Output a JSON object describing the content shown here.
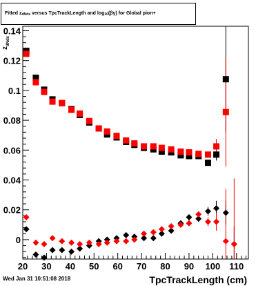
{
  "title": {
    "part1": "Fitted  z",
    "sub1": "dNdx",
    "part2": " versus TpcTrackLength and log",
    "sub2": "10",
    "part3": "(βγ) for Global pion+"
  },
  "timestamp": "Wed Jan 31 10:51:08 2018",
  "chart_data": {
    "type": "scatter",
    "xlabel": "TpcTrackLength (cm)",
    "ylabel": "z",
    "ylabel_sub": "dNdx",
    "xlim": [
      20,
      115
    ],
    "ylim": [
      -0.013,
      0.143
    ],
    "xticks": [
      20,
      30,
      40,
      50,
      60,
      70,
      80,
      90,
      100,
      110
    ],
    "yticks": [
      {
        "v": 0,
        "label": "0"
      },
      {
        "v": 0.02,
        "label": "0.02"
      },
      {
        "v": 0.04,
        "label": "0.04"
      },
      {
        "v": 0.06,
        "label": "0.06"
      },
      {
        "v": 0.08,
        "label": "0.08"
      },
      {
        "v": 0.1,
        "label": "0.1"
      },
      {
        "v": 0.12,
        "label": "0.12"
      },
      {
        "v": 0.14,
        "label": "0.14"
      }
    ],
    "colors": {
      "black": "#000000",
      "red": "#ff0000"
    },
    "series": [
      {
        "marker": "square",
        "color": "#000000",
        "points": [
          [
            21.5,
            0.1265,
            0.002
          ],
          [
            25.5,
            0.1085,
            0.001
          ],
          [
            29,
            0.1005,
            0.001
          ],
          [
            32.5,
            0.094,
            0.001
          ],
          [
            36.5,
            0.0915,
            0.001
          ],
          [
            40.5,
            0.0875,
            0.001
          ],
          [
            44,
            0.0835,
            0.001
          ],
          [
            48,
            0.0785,
            0.001
          ],
          [
            52,
            0.0745,
            0.001
          ],
          [
            55.5,
            0.0705,
            0.001
          ],
          [
            59.5,
            0.0685,
            0.001
          ],
          [
            63.5,
            0.0655,
            0.001
          ],
          [
            67,
            0.0635,
            0.001
          ],
          [
            71,
            0.0615,
            0.001
          ],
          [
            75,
            0.0605,
            0.001
          ],
          [
            78.5,
            0.059,
            0.001
          ],
          [
            82.5,
            0.0585,
            0.001
          ],
          [
            86.5,
            0.0565,
            0.001
          ],
          [
            90,
            0.056,
            0.001
          ],
          [
            94,
            0.056,
            0.001
          ],
          [
            98,
            0.0515,
            0.002
          ],
          [
            101.5,
            0.057,
            0.004
          ],
          [
            105.5,
            0.1075,
            0.0355
          ]
        ]
      },
      {
        "marker": "square",
        "color": "#ff0000",
        "points": [
          [
            21.5,
            0.1245,
            0.002
          ],
          [
            25.5,
            0.1055,
            0.001
          ],
          [
            29,
            0.099,
            0.001
          ],
          [
            32.5,
            0.0925,
            0.001
          ],
          [
            36.5,
            0.0915,
            0.001
          ],
          [
            40.5,
            0.087,
            0.001
          ],
          [
            44,
            0.0845,
            0.001
          ],
          [
            48,
            0.0795,
            0.001
          ],
          [
            52,
            0.0745,
            0.001
          ],
          [
            55.5,
            0.0725,
            0.001
          ],
          [
            59.5,
            0.0695,
            0.001
          ],
          [
            63.5,
            0.0665,
            0.001
          ],
          [
            67,
            0.0645,
            0.001
          ],
          [
            71,
            0.0625,
            0.001
          ],
          [
            75,
            0.0625,
            0.001
          ],
          [
            78.5,
            0.0615,
            0.001
          ],
          [
            82.5,
            0.0605,
            0.001
          ],
          [
            86.5,
            0.059,
            0.001
          ],
          [
            90,
            0.0585,
            0.001
          ],
          [
            94,
            0.0575,
            0.001
          ],
          [
            98,
            0.057,
            0.002
          ],
          [
            101.5,
            0.0625,
            0.005
          ],
          [
            105.5,
            0.0855,
            0.0365
          ]
        ]
      },
      {
        "marker": "diamond",
        "color": "#000000",
        "points": [
          [
            21.5,
            0.007,
            0.001
          ],
          [
            25.5,
            -0.01,
            0.001
          ],
          [
            29,
            -0.012,
            0.001
          ],
          [
            32.5,
            -0.007,
            0.001
          ],
          [
            36.5,
            -0.007,
            0.001
          ],
          [
            40.5,
            -0.008,
            0.001
          ],
          [
            44,
            -0.006,
            0.001
          ],
          [
            48,
            -0.004,
            0.001
          ],
          [
            52,
            -0.001,
            0.001
          ],
          [
            55.5,
            0.0,
            0.001
          ],
          [
            59.5,
            0.001,
            0.001
          ],
          [
            63.5,
            0.003,
            0.001
          ],
          [
            67,
            0.002,
            0.001
          ],
          [
            71,
            0.001,
            0.001
          ],
          [
            75,
            0.001,
            0.001
          ],
          [
            78.5,
            0.004,
            0.001
          ],
          [
            82.5,
            0.006,
            0.001
          ],
          [
            86.5,
            0.011,
            0.001
          ],
          [
            90,
            0.015,
            0.002
          ],
          [
            94,
            0.014,
            0.002
          ],
          [
            98,
            0.019,
            0.003
          ],
          [
            101.5,
            0.021,
            0.005
          ],
          [
            105.5,
            0.018,
            0.008
          ],
          [
            109,
            -0.003,
            0.012
          ]
        ]
      },
      {
        "marker": "diamond",
        "color": "#ff0000",
        "points": [
          [
            21.5,
            0.015,
            0.001
          ],
          [
            25.5,
            -0.002,
            0.001
          ],
          [
            29,
            -0.003,
            0.001
          ],
          [
            32.5,
            0.001,
            0.001
          ],
          [
            36.5,
            -0.001,
            0.001
          ],
          [
            40.5,
            -0.002,
            0.001
          ],
          [
            44,
            -0.003,
            0.001
          ],
          [
            48,
            -0.002,
            0.001
          ],
          [
            52,
            -0.003,
            0.001
          ],
          [
            55.5,
            -0.002,
            0.001
          ],
          [
            59.5,
            -0.001,
            0.001
          ],
          [
            63.5,
            -0.001,
            0.001
          ],
          [
            67,
            0.0,
            0.001
          ],
          [
            71,
            0.004,
            0.001
          ],
          [
            75,
            0.005,
            0.001
          ],
          [
            78.5,
            0.007,
            0.001
          ],
          [
            82.5,
            0.009,
            0.001
          ],
          [
            86.5,
            0.01,
            0.001
          ],
          [
            90,
            0.011,
            0.002
          ],
          [
            94,
            0.017,
            0.002
          ],
          [
            98,
            0.012,
            0.003
          ],
          [
            101.5,
            0.012,
            0.006
          ],
          [
            105.5,
            -0.001,
            0.035
          ],
          [
            109,
            -0.003,
            0.044
          ]
        ]
      }
    ]
  }
}
